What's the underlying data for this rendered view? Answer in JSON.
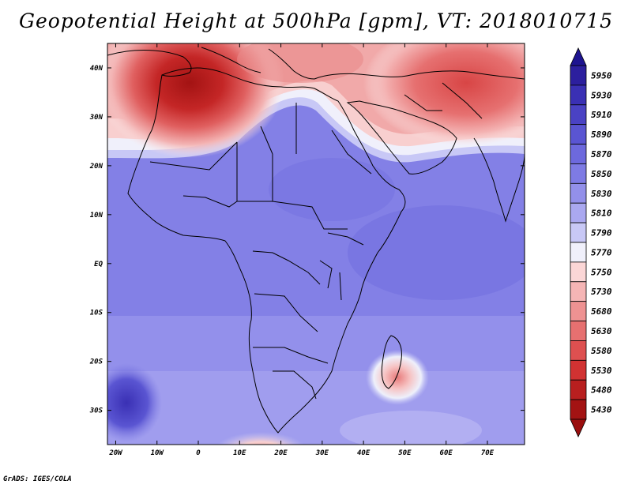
{
  "title": "Geopotential Height at 500hPa [gpm], VT: 2018010715",
  "credit": "GrADS: IGES/COLA",
  "map": {
    "lon_ticks": [
      "20W",
      "10W",
      "0",
      "10E",
      "20E",
      "30E",
      "40E",
      "50E",
      "60E",
      "70E"
    ],
    "lat_ticks": [
      "40N",
      "30N",
      "20N",
      "10N",
      "EQ",
      "10S",
      "20S",
      "30S"
    ],
    "lon_range": [
      -22,
      79
    ],
    "lat_range": [
      -37,
      45
    ]
  },
  "colorbar": {
    "levels": [
      "5950",
      "5930",
      "5910",
      "5890",
      "5870",
      "5850",
      "5830",
      "5810",
      "5790",
      "5770",
      "5750",
      "5730",
      "5680",
      "5630",
      "5580",
      "5530",
      "5480",
      "5430"
    ],
    "colors": [
      "#2c1f9e",
      "#3a30b4",
      "#4a42c4",
      "#5a55d2",
      "#6d69dd",
      "#7e7be4",
      "#9390ea",
      "#aaa8f0",
      "#c8c8f6",
      "#f0f0fb",
      "#fbd6d6",
      "#f5b5b5",
      "#ee9292",
      "#e67070",
      "#de5050",
      "#d13232",
      "#b81f1f",
      "#a31313"
    ]
  }
}
